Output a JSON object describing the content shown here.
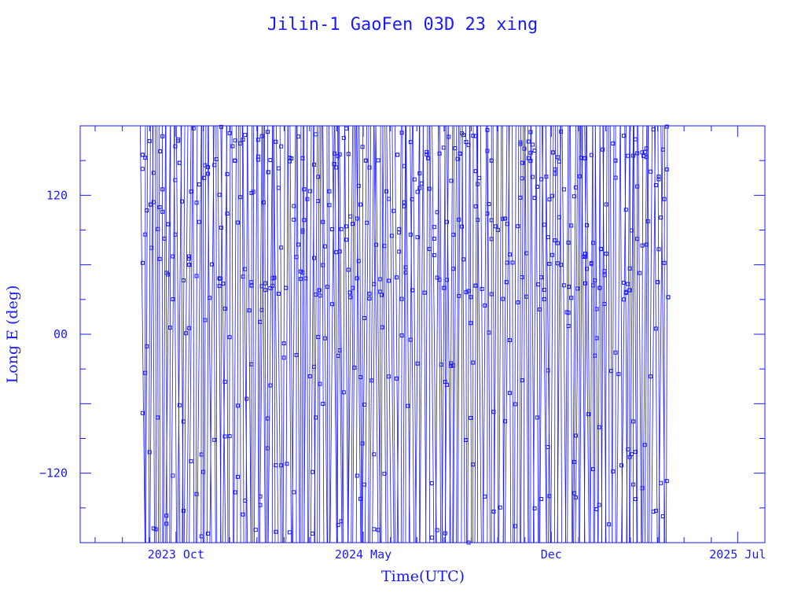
{
  "chart_data": {
    "type": "line",
    "title": "Jilin-1 GaoFen 03D 23 xing",
    "xlabel": "Time(UTC)",
    "ylabel": "Long E (deg)",
    "xlim": [
      "2023-06-14",
      "2025-08-01"
    ],
    "ylim": [
      -180,
      180
    ],
    "xticks": [
      {
        "label": "2023 Oct",
        "date": "2023-10-01"
      },
      {
        "label": "2024 May",
        "date": "2024-05-01"
      },
      {
        "label": "Dec",
        "date": "2024-12-01"
      },
      {
        "label": "2025 Jul",
        "date": "2025-07-01"
      }
    ],
    "yticks": [
      {
        "label": "120",
        "value": 120
      },
      {
        "label": "00",
        "value": 0
      },
      {
        "label": "−120",
        "value": -120
      }
    ],
    "grid": false,
    "marker": "square",
    "line_color": "#1a1aff",
    "series": [
      {
        "x": [
          "2023-08-24",
          "2023-09-02",
          "2023-09-13",
          "2023-09-22",
          "2023-10-05",
          "2023-10-16",
          "2023-11-02",
          "2023-11-20",
          "2023-12-07",
          "2023-12-26",
          "2024-01-14",
          "2024-02-03",
          "2024-02-22",
          "2024-03-12",
          "2024-03-29",
          "2024-04-16",
          "2024-05-04",
          "2024-05-22",
          "2024-06-09",
          "2024-06-26",
          "2024-07-14",
          "2024-08-01",
          "2024-08-19",
          "2024-09-06",
          "2024-09-24",
          "2024-10-11",
          "2024-10-29",
          "2024-11-16",
          "2024-12-03",
          "2024-12-21",
          "2025-01-08",
          "2025-01-25",
          "2025-02-12",
          "2025-02-28",
          "2025-03-16",
          "2025-04-01",
          "2025-04-13"
        ],
        "y": [
          155,
          112,
          158,
          95,
          148,
          60,
          135,
          48,
          150,
          42,
          140,
          40,
          152,
          38,
          147,
          36,
          150,
          34,
          155,
          38,
          152,
          40,
          156,
          42,
          150,
          45,
          148,
          43,
          157,
          41,
          152,
          40,
          150,
          38,
          154,
          45,
          32
        ]
      }
    ]
  }
}
